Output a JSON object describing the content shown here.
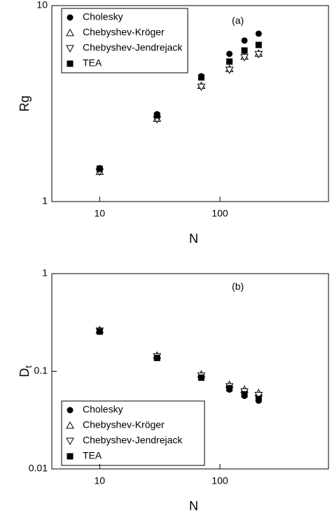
{
  "chart_data": [
    {
      "type": "scatter",
      "annotation": "(a)",
      "xlabel": "N",
      "ylabel": "Rg",
      "xlog": true,
      "ylog": true,
      "xlim": [
        4,
        800
      ],
      "ylim": [
        1,
        10
      ],
      "xticks": [
        10,
        100
      ],
      "yticks": [
        1,
        10
      ],
      "legend": "upper left",
      "x": [
        10,
        30,
        70,
        120,
        160,
        210
      ],
      "series": [
        {
          "name": "Cholesky",
          "marker": "circle",
          "filled": true,
          "color": "#000000",
          "values": [
            1.48,
            2.79,
            4.36,
            5.67,
            6.63,
            7.19
          ]
        },
        {
          "name": "Chebyshev-Kröger",
          "marker": "triangle-up",
          "filled": false,
          "color": "#000000",
          "values": [
            1.42,
            2.65,
            3.9,
            4.75,
            5.5,
            5.7
          ]
        },
        {
          "name": "Chebyshev-Jendrejack",
          "marker": "triangle-down",
          "filled": false,
          "color": "#000000",
          "values": [
            1.42,
            2.63,
            3.85,
            4.7,
            5.45,
            5.65
          ]
        },
        {
          "name": "TEA",
          "marker": "square",
          "filled": true,
          "color": "#000000",
          "values": [
            1.47,
            2.75,
            4.3,
            5.18,
            5.9,
            6.3
          ]
        }
      ]
    },
    {
      "type": "scatter",
      "annotation": "(b)",
      "xlabel": "N",
      "ylabel": "D",
      "ylabel_sub": "t",
      "xlog": true,
      "ylog": true,
      "xlim": [
        4,
        800
      ],
      "ylim": [
        0.01,
        1
      ],
      "xticks": [
        10,
        100
      ],
      "yticks": [
        0.01,
        0.1,
        1
      ],
      "legend": "lower left",
      "x": [
        10,
        30,
        70,
        120,
        160,
        210
      ],
      "series": [
        {
          "name": "Cholesky",
          "marker": "circle",
          "filled": true,
          "color": "#000000",
          "values": [
            0.255,
            0.138,
            0.087,
            0.065,
            0.056,
            0.05
          ]
        },
        {
          "name": "Chebyshev-Kröger",
          "marker": "triangle-up",
          "filled": false,
          "color": "#000000",
          "values": [
            0.265,
            0.145,
            0.093,
            0.073,
            0.065,
            0.06
          ]
        },
        {
          "name": "Chebyshev-Jendrejack",
          "marker": "triangle-down",
          "filled": false,
          "color": "#000000",
          "values": [
            0.26,
            0.142,
            0.09,
            0.07,
            0.062,
            0.057
          ]
        },
        {
          "name": "TEA",
          "marker": "square",
          "filled": true,
          "color": "#000000",
          "values": [
            0.255,
            0.137,
            0.086,
            0.067,
            0.058,
            0.052
          ]
        }
      ]
    }
  ]
}
